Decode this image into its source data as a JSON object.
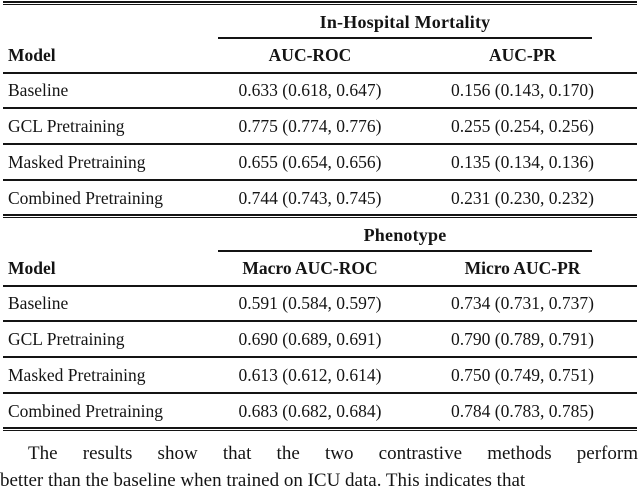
{
  "page": {
    "background": "#ffffff",
    "text_color": "#141414",
    "rule_color": "#141414"
  },
  "tables": [
    {
      "group_header": "In-Hospital Mortality",
      "col_headers": [
        "Model",
        "AUC-ROC",
        "AUC-PR"
      ],
      "rows": [
        [
          "Baseline",
          "0.633 (0.618, 0.647)",
          "0.156 (0.143, 0.170)"
        ],
        [
          "GCL Pretraining",
          "0.775 (0.774, 0.776)",
          "0.255 (0.254, 0.256)"
        ],
        [
          "Masked Pretraining",
          "0.655 (0.654, 0.656)",
          "0.135 (0.134, 0.136)"
        ],
        [
          "Combined Pretraining",
          "0.744 (0.743, 0.745)",
          "0.231 (0.230, 0.232)"
        ]
      ]
    },
    {
      "group_header": "Phenotype",
      "col_headers": [
        "Model",
        "Macro AUC-ROC",
        "Micro AUC-PR"
      ],
      "rows": [
        [
          "Baseline",
          "0.591 (0.584, 0.597)",
          "0.734 (0.731, 0.737)"
        ],
        [
          "GCL Pretraining",
          "0.690 (0.689, 0.691)",
          "0.790 (0.789, 0.791)"
        ],
        [
          "Masked Pretraining",
          "0.613 (0.612, 0.614)",
          "0.750 (0.749, 0.751)"
        ],
        [
          "Combined Pretraining",
          "0.683 (0.682, 0.684)",
          "0.784 (0.783, 0.785)"
        ]
      ]
    }
  ],
  "paragraph": {
    "line1": "The results show that the two contrastive methods perform",
    "line2_partial": "better than the baseline when trained on ICU data. This indicates that"
  }
}
